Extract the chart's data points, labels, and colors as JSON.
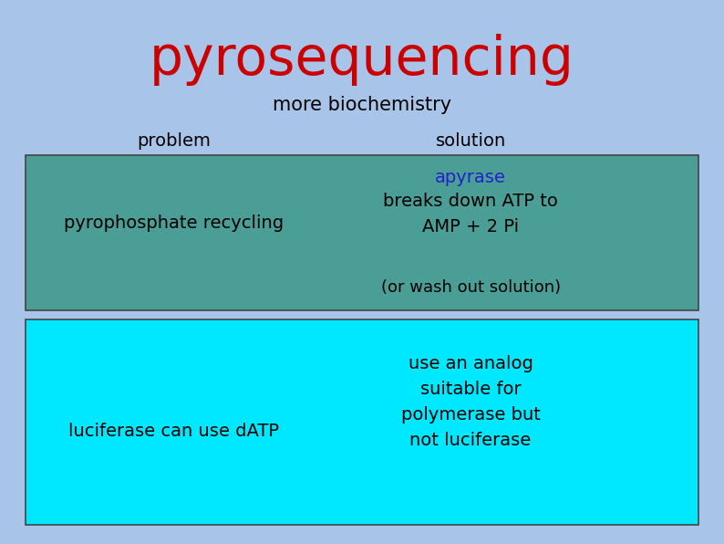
{
  "title": "pyrosequencing",
  "subtitle": "more biochemistry",
  "title_color": "#cc0000",
  "title_fontsize": 42,
  "subtitle_fontsize": 15,
  "bg_color": "#a8c4e8",
  "box1_color": "#4a9e96",
  "box2_color": "#00e8ff",
  "box1_problem_text": "pyrophosphate recycling",
  "box1_solution_line1": "apyrase",
  "box1_solution_line1_color": "#2222cc",
  "box1_solution_line2": "breaks down ATP to\nAMP + 2 Pi",
  "box1_solution_line2_color": "#000000",
  "box1_extra": "(or wash out solution)",
  "box2_problem_text": "luciferase can use dATP",
  "box2_solution_text": "use an analog\nsuitable for\npolymerase but\nnot luciferase",
  "problem_label": "problem",
  "solution_label": "solution",
  "label_fontsize": 14,
  "content_fontsize": 14,
  "figsize": [
    7.94,
    5.96
  ],
  "dpi": 100
}
